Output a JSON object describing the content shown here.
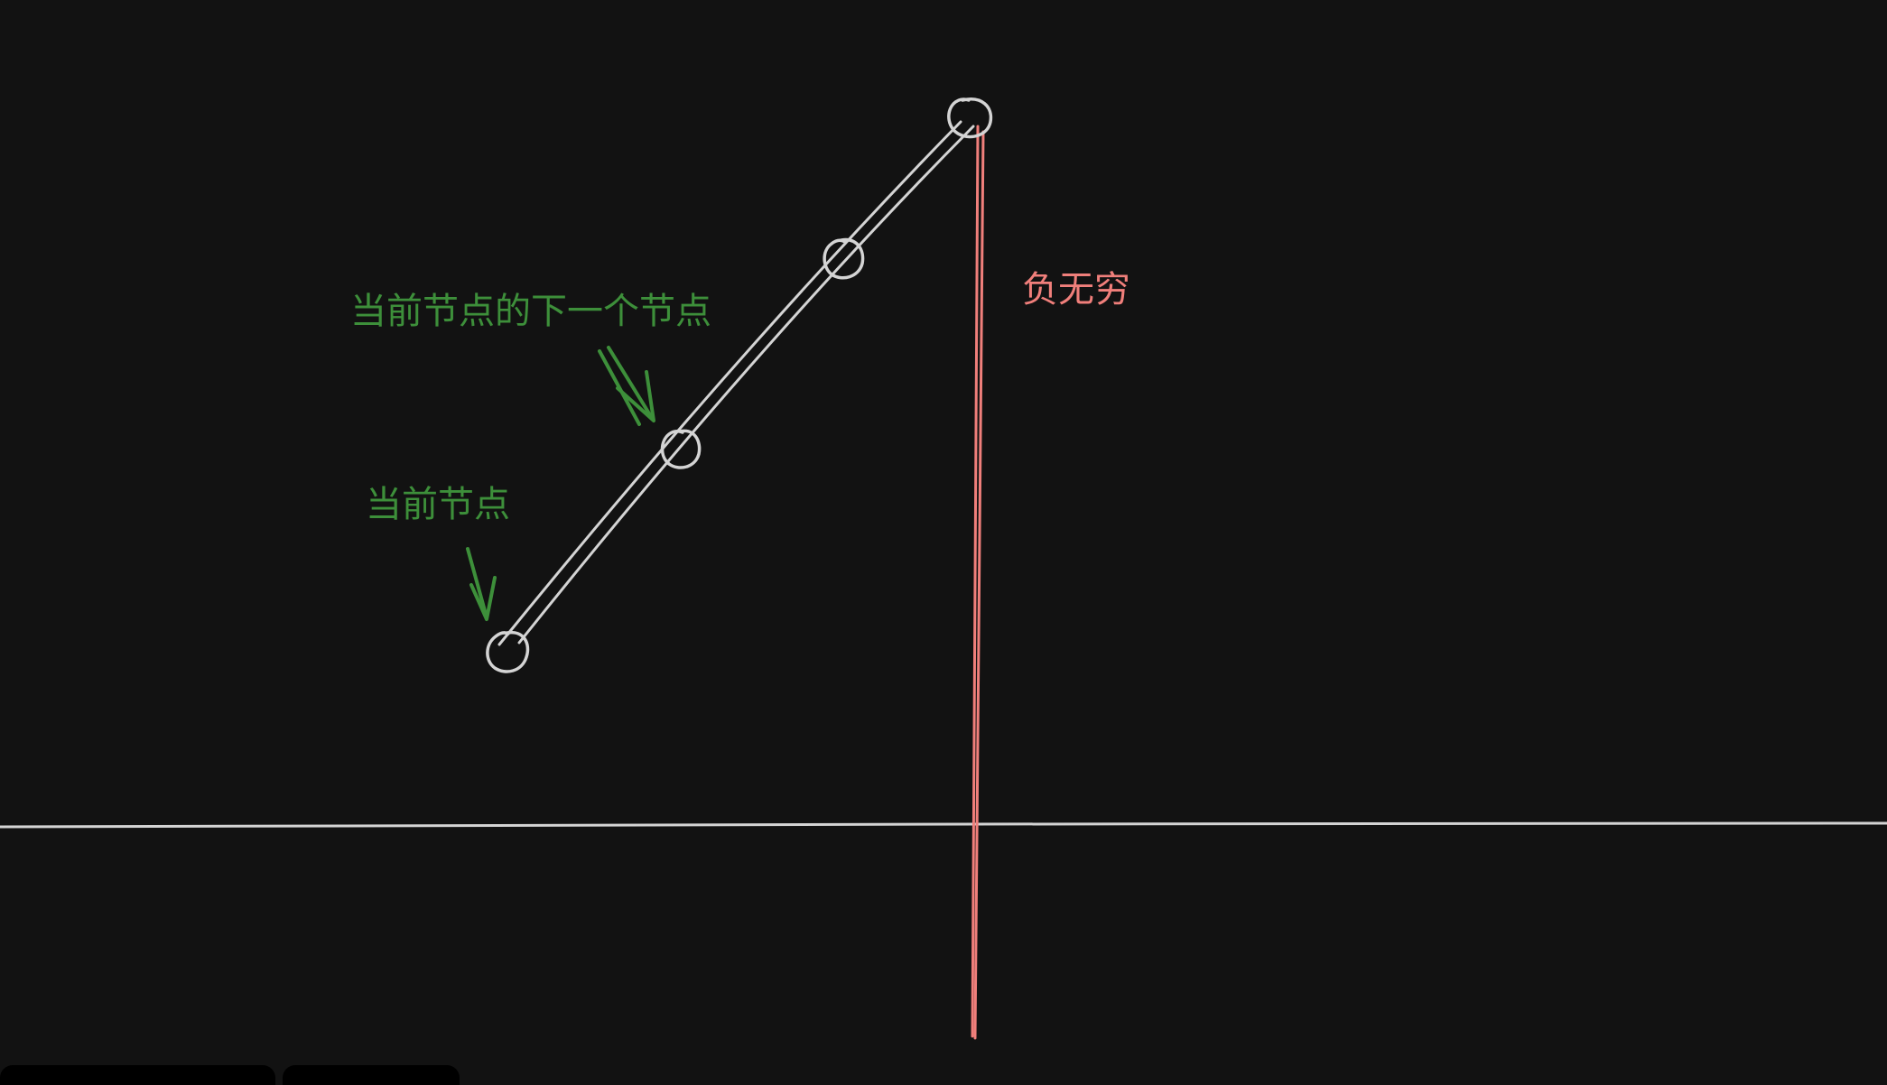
{
  "canvas": {
    "background": "#121212"
  },
  "colors": {
    "sketch": "#d4d4d4",
    "annotation_green": "#3d8f3a",
    "annotation_red": "#f07f7b",
    "toolbar": "#000000"
  },
  "annotations": {
    "next_node": "当前节点的下一个节点",
    "current_node": "当前节点",
    "negative_infinity": "负无穷"
  }
}
